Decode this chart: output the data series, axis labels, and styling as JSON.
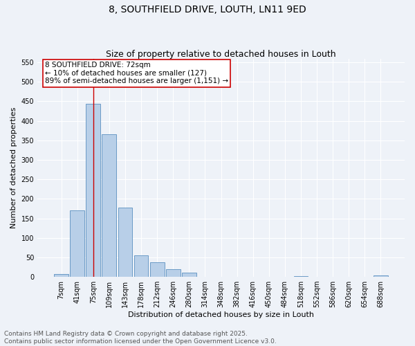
{
  "title_line1": "8, SOUTHFIELD DRIVE, LOUTH, LN11 9ED",
  "title_line2": "Size of property relative to detached houses in Louth",
  "xlabel": "Distribution of detached houses by size in Louth",
  "ylabel": "Number of detached properties",
  "bar_labels": [
    "7sqm",
    "41sqm",
    "75sqm",
    "109sqm",
    "143sqm",
    "178sqm",
    "212sqm",
    "246sqm",
    "280sqm",
    "314sqm",
    "348sqm",
    "382sqm",
    "416sqm",
    "450sqm",
    "484sqm",
    "518sqm",
    "552sqm",
    "586sqm",
    "620sqm",
    "654sqm",
    "688sqm"
  ],
  "bar_values": [
    8,
    170,
    443,
    365,
    177,
    55,
    38,
    20,
    11,
    1,
    0,
    0,
    0,
    0,
    0,
    2,
    0,
    0,
    0,
    0,
    3
  ],
  "bar_color": "#b8cfe8",
  "bar_edge_color": "#5a8fc0",
  "vline_x_index": 2,
  "vline_color": "#cc0000",
  "annotation_text": "8 SOUTHFIELD DRIVE: 72sqm\n← 10% of detached houses are smaller (127)\n89% of semi-detached houses are larger (1,151) →",
  "annotation_box_color": "#ffffff",
  "annotation_box_edge": "#cc0000",
  "ylim": [
    0,
    560
  ],
  "yticks": [
    0,
    50,
    100,
    150,
    200,
    250,
    300,
    350,
    400,
    450,
    500,
    550
  ],
  "footnote_line1": "Contains HM Land Registry data © Crown copyright and database right 2025.",
  "footnote_line2": "Contains public sector information licensed under the Open Government Licence v3.0.",
  "bg_color": "#eef2f8",
  "plot_bg_color": "#eef2f8",
  "grid_color": "#ffffff",
  "title_fontsize": 10,
  "subtitle_fontsize": 9,
  "axis_label_fontsize": 8,
  "tick_fontsize": 7,
  "footnote_fontsize": 6.5,
  "annotation_fontsize": 7.5
}
